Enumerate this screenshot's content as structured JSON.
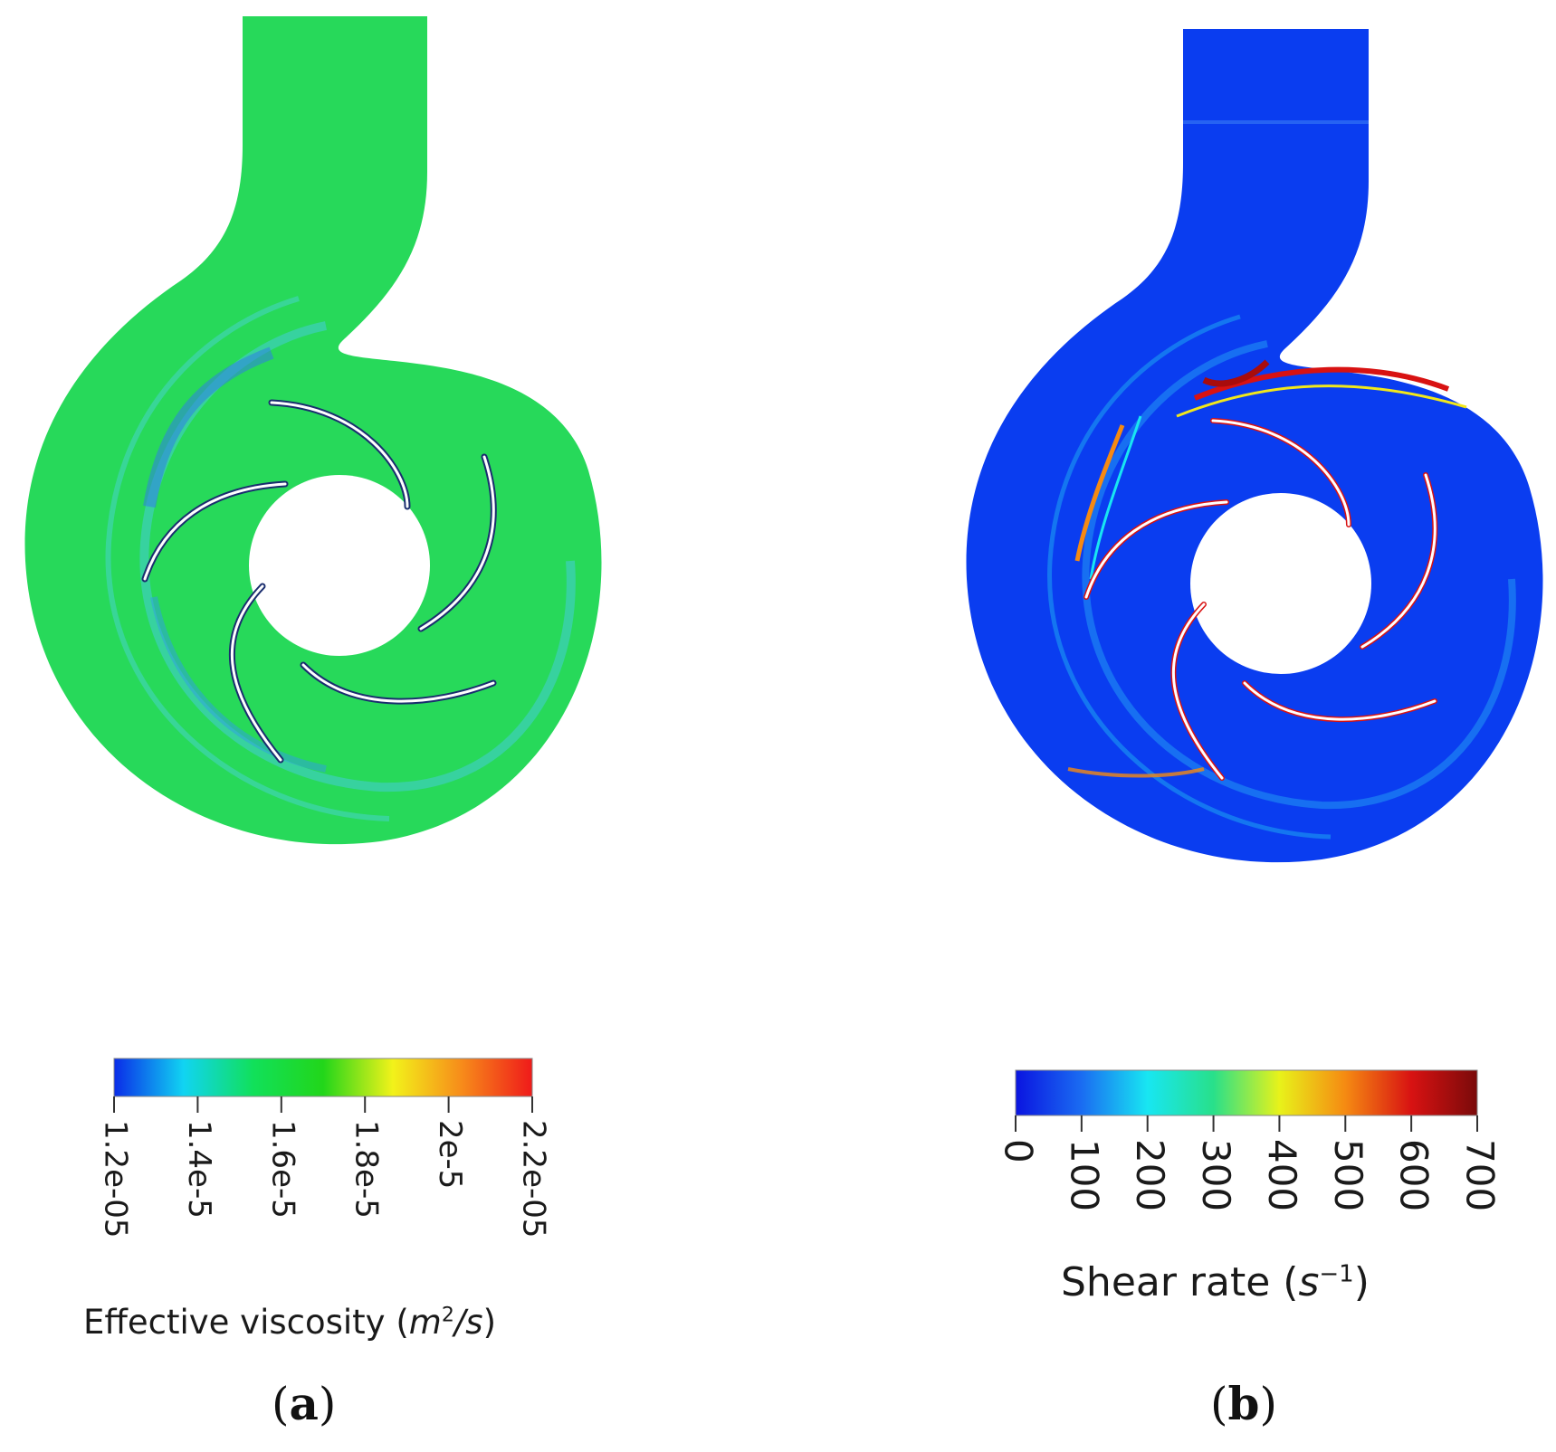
{
  "panels": [
    {
      "label": "a",
      "colorbar": {
        "title_text": "Effective viscosity (",
        "title_unit": "m",
        "title_sup": "2",
        "title_unit2": "/s",
        "title_close": ")",
        "min": 1.2e-05,
        "max": 2.2e-05,
        "ticks": [
          {
            "value": 1.2e-05,
            "label": "1.2e-05"
          },
          {
            "value": 1.4e-05,
            "label": "1.4e-5"
          },
          {
            "value": 1.6e-05,
            "label": "1.6e-5"
          },
          {
            "value": 1.8e-05,
            "label": "1.8e-5"
          },
          {
            "value": 2e-05,
            "label": "2e-5"
          },
          {
            "value": 2.2e-05,
            "label": "2.2e-05"
          }
        ],
        "colors": [
          "#0a2ce8",
          "#11d4f2",
          "#11e05a",
          "#22d61a",
          "#f2f21a",
          "#f78a1a",
          "#ef1a1a"
        ]
      },
      "field_color": "#22dc55"
    },
    {
      "label": "b",
      "colorbar": {
        "title_text": "Shear rate (",
        "title_unit": "s",
        "title_sup": "−1",
        "title_unit2": "",
        "title_close": ")",
        "min": 0,
        "max": 700,
        "ticks": [
          {
            "value": 0,
            "label": "0"
          },
          {
            "value": 100,
            "label": "100"
          },
          {
            "value": 200,
            "label": "200"
          },
          {
            "value": 300,
            "label": "300"
          },
          {
            "value": 400,
            "label": "400"
          },
          {
            "value": 500,
            "label": "500"
          },
          {
            "value": 600,
            "label": "600"
          },
          {
            "value": 700,
            "label": "700"
          }
        ],
        "colors": [
          "#0a14e0",
          "#1a6cf2",
          "#18e6f2",
          "#28e08a",
          "#e8f21a",
          "#f58a12",
          "#d81212",
          "#7a0a0a"
        ]
      },
      "field_color": "#0a3df0"
    }
  ]
}
